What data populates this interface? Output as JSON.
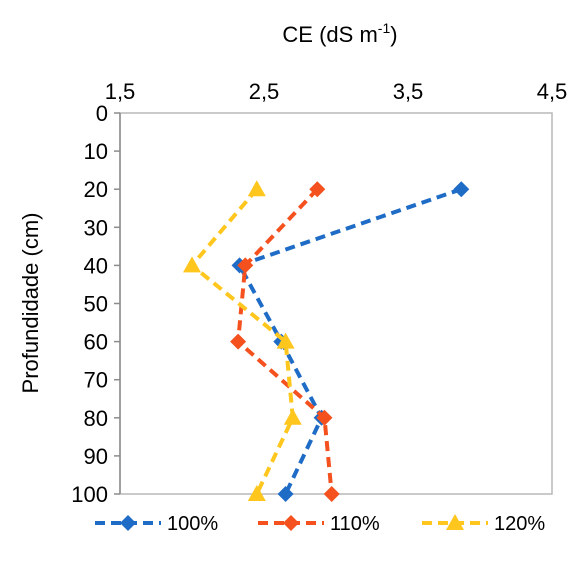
{
  "chart_data": {
    "type": "line",
    "x_title_main": "CE (dS m",
    "x_title_sup": "-1",
    "x_title_close": ")",
    "ylabel": "Profundidade (cm)",
    "xlim": [
      1.5,
      4.5
    ],
    "ylim": [
      0,
      100
    ],
    "x_ticks": [
      "1,5",
      "2,5",
      "3,5",
      "4,5"
    ],
    "x_tick_values": [
      1.5,
      2.5,
      3.5,
      4.5
    ],
    "y_ticks": [
      "0",
      "10",
      "20",
      "30",
      "40",
      "50",
      "60",
      "70",
      "80",
      "90",
      "100"
    ],
    "y_tick_values": [
      0,
      10,
      20,
      30,
      40,
      50,
      60,
      70,
      80,
      90,
      100
    ],
    "y_inverted": true,
    "x_axis_position": "top",
    "grid": false,
    "legend_position": "bottom",
    "series": [
      {
        "name": "100%",
        "color": "#1F6CC7",
        "marker": "diamond",
        "points": [
          [
            3.87,
            20
          ],
          [
            2.33,
            40
          ],
          [
            2.62,
            60
          ],
          [
            2.9,
            80
          ],
          [
            2.65,
            100
          ]
        ]
      },
      {
        "name": "110%",
        "color": "#F4511E",
        "marker": "diamond",
        "points": [
          [
            2.87,
            20
          ],
          [
            2.37,
            40
          ],
          [
            2.32,
            60
          ],
          [
            2.92,
            80
          ],
          [
            2.97,
            100
          ]
        ]
      },
      {
        "name": "120%",
        "color": "#FFC61E",
        "marker": "triangle",
        "points": [
          [
            2.45,
            20
          ],
          [
            2.0,
            40
          ],
          [
            2.65,
            60
          ],
          [
            2.7,
            80
          ],
          [
            2.45,
            100
          ]
        ]
      }
    ]
  }
}
